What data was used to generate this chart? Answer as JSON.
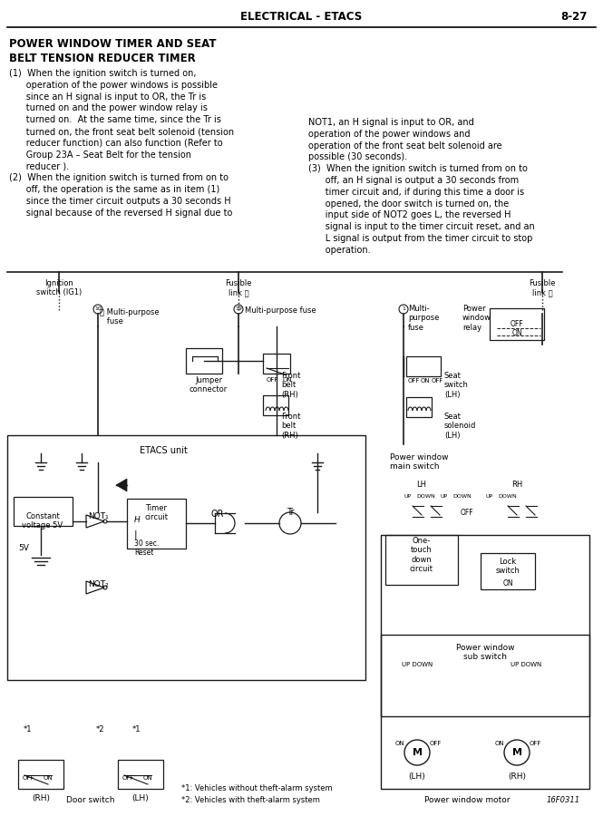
{
  "page_header": "ELECTRICAL - ETACS",
  "page_number": "8-27",
  "section_title": "POWER WINDOW TIMER AND SEAT\nBELT TENSION REDUCER TIMER",
  "para1": "(1)  When the ignition switch is turned on,\n      operation of the power windows is possible\n      since an H signal is input to OR, the Tr is\n      turned on and the power window relay is\n      turned on.  At the same time, since the Tr is\n      turned on, the front seat belt solenoid (tension\n      reducer function) can also function (Refer to\n      Group 23A – Seat Belt for the tension\n      reducer ).",
  "para2": "(2)  When the ignition switch is turned from on to\n      off, the operation is the same as in item (1)\n      since the timer circuit outputs a 30 seconds H\n      signal because of the reversed H signal due to",
  "para3": "NOT1, an H signal is input to OR, and\noperation of the power windows and\noperation of the front seat belt solenoid are\npossible (30 seconds).",
  "para4": "(3)  When the ignition switch is turned from on to\n      off, an H signal is output a 30 seconds from\n      timer circuit and, if during this time a door is\n      opened, the door switch is turned on, the\n      input side of NOT2 goes L, the reversed H\n      signal is input to the timer circuit reset, and an\n      L signal is output from the timer circuit to stop\n      operation.",
  "footer_left": "Door switch",
  "footer_right": "Power window motor",
  "diagram_ref": "16F0311",
  "bg_color": "#ffffff",
  "line_color": "#000000",
  "diagram_line_color": "#1a1a1a"
}
